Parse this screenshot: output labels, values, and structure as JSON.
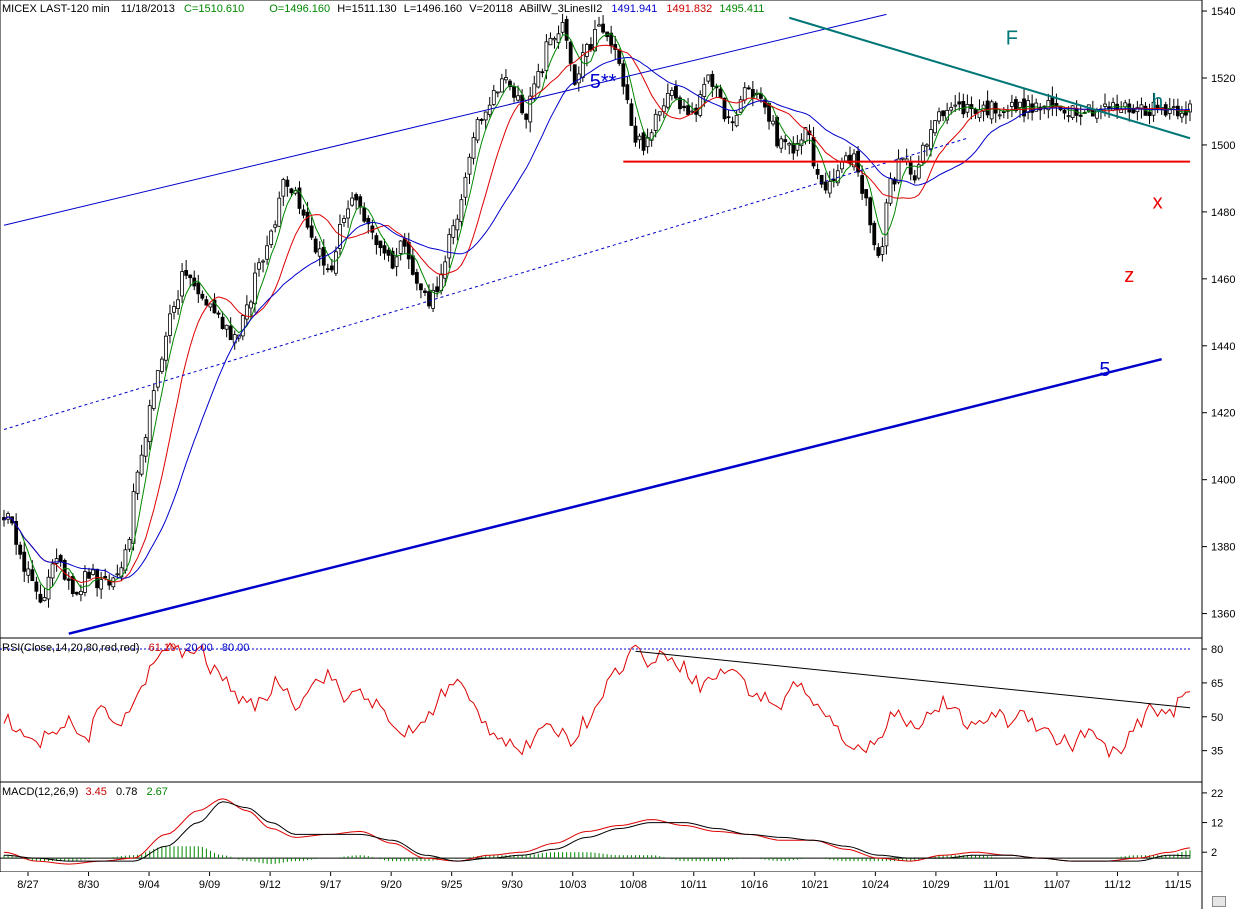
{
  "chart_data": {
    "type": "candlestick",
    "header": {
      "symbol_period": "MICEX LAST-120 min",
      "date": "11/18/2013",
      "close": "C=1510.610",
      "open": "O=1496.160",
      "high": "H=1511.130",
      "low": "L=1496.160",
      "volume": "V=20118",
      "indicator_name": "ABillW_3LinesII2",
      "line_values": [
        {
          "value": "1491.941",
          "color": "#0000cc"
        },
        {
          "value": "1491.832",
          "color": "#cc0000"
        },
        {
          "value": "1495.411",
          "color": "#008800"
        }
      ]
    },
    "price_axis": {
      "ticks": [
        1360,
        1380,
        1400,
        1420,
        1440,
        1460,
        1480,
        1500,
        1520,
        1540
      ],
      "ylim": [
        1353,
        1543
      ]
    },
    "date_axis": {
      "ticks": [
        "8/27",
        "8/30",
        "9/04",
        "9/09",
        "9/12",
        "9/17",
        "9/20",
        "9/25",
        "9/30",
        "10/03",
        "10/08",
        "10/11",
        "10/16",
        "10/21",
        "10/24",
        "10/29",
        "11/01",
        "11/07",
        "11/12",
        "11/15"
      ]
    },
    "price_anchors": [
      [
        0,
        1390
      ],
      [
        3,
        1383
      ],
      [
        6,
        1372
      ],
      [
        9,
        1362
      ],
      [
        12,
        1376
      ],
      [
        15,
        1372
      ],
      [
        18,
        1367
      ],
      [
        21,
        1372
      ],
      [
        24,
        1368
      ],
      [
        27,
        1370
      ],
      [
        30,
        1377
      ],
      [
        33,
        1400
      ],
      [
        36,
        1420
      ],
      [
        39,
        1438
      ],
      [
        42,
        1453
      ],
      [
        45,
        1462
      ],
      [
        48,
        1455
      ],
      [
        51,
        1452
      ],
      [
        54,
        1447
      ],
      [
        57,
        1443
      ],
      [
        60,
        1450
      ],
      [
        63,
        1465
      ],
      [
        66,
        1474
      ],
      [
        69,
        1490
      ],
      [
        72,
        1486
      ],
      [
        75,
        1475
      ],
      [
        78,
        1467
      ],
      [
        81,
        1462
      ],
      [
        84,
        1478
      ],
      [
        87,
        1485
      ],
      [
        90,
        1475
      ],
      [
        93,
        1470
      ],
      [
        96,
        1465
      ],
      [
        99,
        1472
      ],
      [
        102,
        1458
      ],
      [
        105,
        1454
      ],
      [
        108,
        1460
      ],
      [
        111,
        1475
      ],
      [
        114,
        1489
      ],
      [
        117,
        1508
      ],
      [
        120,
        1513
      ],
      [
        123,
        1520
      ],
      [
        126,
        1515
      ],
      [
        129,
        1510
      ],
      [
        132,
        1520
      ],
      [
        135,
        1532
      ],
      [
        138,
        1535
      ],
      [
        141,
        1518
      ],
      [
        144,
        1528
      ],
      [
        147,
        1535
      ],
      [
        150,
        1530
      ],
      [
        153,
        1520
      ],
      [
        156,
        1502
      ],
      [
        159,
        1500
      ],
      [
        162,
        1512
      ],
      [
        165,
        1518
      ],
      [
        168,
        1510
      ],
      [
        171,
        1510
      ],
      [
        174,
        1522
      ],
      [
        177,
        1512
      ],
      [
        180,
        1505
      ],
      [
        183,
        1517
      ],
      [
        186,
        1515
      ],
      [
        189,
        1508
      ],
      [
        192,
        1500
      ],
      [
        195,
        1498
      ],
      [
        198,
        1505
      ],
      [
        201,
        1490
      ],
      [
        204,
        1487
      ],
      [
        207,
        1494
      ],
      [
        210,
        1497
      ],
      [
        213,
        1483
      ],
      [
        216,
        1465
      ],
      [
        219,
        1489
      ],
      [
        222,
        1495
      ],
      [
        225,
        1492
      ],
      [
        228,
        1500
      ],
      [
        231,
        1511
      ]
    ],
    "ma_lines": [
      {
        "color": "#008800",
        "period": 5
      },
      {
        "color": "#dd0000",
        "period": 13
      },
      {
        "color": "#0000cc",
        "period": 26
      }
    ],
    "trend_lines": [
      {
        "name": "upper-channel-line",
        "color": "#0000cc",
        "style": "solid",
        "width": 1,
        "from": [
          0,
          1476
        ],
        "to": [
          218,
          1539
        ]
      },
      {
        "name": "mid-channel-dotted-line",
        "color": "#0000cc",
        "style": "dotted",
        "width": 1,
        "from": [
          0,
          1415
        ],
        "to": [
          238,
          1502
        ]
      },
      {
        "name": "lower-channel-line",
        "color": "#0000cc",
        "style": "solid",
        "width": 2.5,
        "from": [
          16,
          1354
        ],
        "to": [
          286,
          1436
        ]
      },
      {
        "name": "resistance-line",
        "color": "#007777",
        "style": "solid",
        "width": 2,
        "from": [
          194,
          1538
        ],
        "to": [
          293,
          1502
        ]
      },
      {
        "name": "support-line",
        "color": "#ee0000",
        "style": "solid",
        "width": 2,
        "from": [
          153,
          1495
        ],
        "to": [
          293,
          1495
        ]
      }
    ],
    "annotations": [
      {
        "text": "5**",
        "color": "#0000cc",
        "bar": 148,
        "price": 1517
      },
      {
        "text": "F",
        "color": "#007777",
        "bar": 249,
        "price": 1530
      },
      {
        "text": "h",
        "color": "#007777",
        "bar": 285,
        "price": 1511
      },
      {
        "text": "x",
        "color": "#ee0000",
        "bar": 285,
        "price": 1481
      },
      {
        "text": "z",
        "color": "#ee0000",
        "bar": 278,
        "price": 1459
      },
      {
        "text": "5",
        "color": "#0000cc",
        "bar": 272,
        "price": 1431
      }
    ],
    "rsi": {
      "title": "RSI(Close,14,20,80,red,red)",
      "values": [
        {
          "value": "61.10",
          "color": "#cc0000"
        },
        {
          "value": "20.00",
          "color": "#0000cc"
        },
        {
          "value": "80.00",
          "color": "#0000cc"
        }
      ],
      "ticks": [
        35,
        50,
        65,
        80
      ],
      "ylim": [
        22,
        84
      ],
      "levels": [
        20,
        80
      ],
      "trend_line": {
        "from": [
          156,
          79
        ],
        "to": [
          293,
          54
        ]
      },
      "anchors": [
        [
          0,
          50
        ],
        [
          4,
          42
        ],
        [
          8,
          37
        ],
        [
          12,
          45
        ],
        [
          16,
          47
        ],
        [
          20,
          40
        ],
        [
          24,
          52
        ],
        [
          28,
          48
        ],
        [
          32,
          55
        ],
        [
          36,
          70
        ],
        [
          40,
          81
        ],
        [
          44,
          78
        ],
        [
          48,
          80
        ],
        [
          52,
          70
        ],
        [
          56,
          64
        ],
        [
          60,
          54
        ],
        [
          64,
          58
        ],
        [
          68,
          66
        ],
        [
          72,
          56
        ],
        [
          76,
          64
        ],
        [
          80,
          69
        ],
        [
          84,
          58
        ],
        [
          88,
          62
        ],
        [
          92,
          55
        ],
        [
          96,
          45
        ],
        [
          100,
          43
        ],
        [
          104,
          48
        ],
        [
          108,
          60
        ],
        [
          112,
          65
        ],
        [
          116,
          55
        ],
        [
          120,
          45
        ],
        [
          124,
          40
        ],
        [
          128,
          35
        ],
        [
          132,
          42
        ],
        [
          136,
          45
        ],
        [
          140,
          40
        ],
        [
          144,
          48
        ],
        [
          148,
          62
        ],
        [
          152,
          72
        ],
        [
          156,
          80
        ],
        [
          160,
          74
        ],
        [
          164,
          78
        ],
        [
          168,
          72
        ],
        [
          172,
          64
        ],
        [
          176,
          68
        ],
        [
          180,
          72
        ],
        [
          184,
          62
        ],
        [
          188,
          58
        ],
        [
          192,
          55
        ],
        [
          196,
          66
        ],
        [
          200,
          55
        ],
        [
          204,
          48
        ],
        [
          208,
          40
        ],
        [
          212,
          34
        ],
        [
          216,
          42
        ],
        [
          220,
          52
        ],
        [
          224,
          46
        ],
        [
          228,
          50
        ],
        [
          232,
          56
        ],
        [
          236,
          50
        ],
        [
          240,
          44
        ],
        [
          244,
          52
        ],
        [
          248,
          48
        ],
        [
          252,
          52
        ],
        [
          256,
          46
        ],
        [
          260,
          40
        ],
        [
          264,
          38
        ],
        [
          268,
          44
        ],
        [
          272,
          36
        ],
        [
          276,
          34
        ],
        [
          280,
          46
        ],
        [
          284,
          54
        ],
        [
          288,
          52
        ],
        [
          293,
          61
        ]
      ]
    },
    "macd": {
      "title": "MACD(12,26,9)",
      "values": [
        {
          "value": "3.45",
          "color": "#cc0000"
        },
        {
          "value": "0.78",
          "color": "#000000"
        },
        {
          "value": "2.67",
          "color": "#008800"
        }
      ],
      "ticks": [
        2,
        12,
        22
      ],
      "ylim": [
        -4,
        25
      ],
      "macd_anchors": [
        [
          0,
          2
        ],
        [
          8,
          -1
        ],
        [
          16,
          -2
        ],
        [
          24,
          -1
        ],
        [
          32,
          0
        ],
        [
          40,
          8
        ],
        [
          48,
          16
        ],
        [
          54,
          20
        ],
        [
          60,
          16
        ],
        [
          66,
          10
        ],
        [
          72,
          7
        ],
        [
          80,
          8
        ],
        [
          88,
          9
        ],
        [
          96,
          5
        ],
        [
          104,
          0
        ],
        [
          112,
          -1
        ],
        [
          120,
          1
        ],
        [
          128,
          2
        ],
        [
          136,
          5
        ],
        [
          144,
          9
        ],
        [
          152,
          11
        ],
        [
          160,
          13
        ],
        [
          168,
          11
        ],
        [
          176,
          9
        ],
        [
          184,
          8
        ],
        [
          192,
          6
        ],
        [
          200,
          6
        ],
        [
          208,
          3
        ],
        [
          216,
          0
        ],
        [
          224,
          -1
        ],
        [
          232,
          1
        ],
        [
          240,
          2
        ],
        [
          248,
          1
        ],
        [
          256,
          0
        ],
        [
          264,
          -1
        ],
        [
          272,
          -1
        ],
        [
          280,
          0
        ],
        [
          288,
          2
        ],
        [
          293,
          3.45
        ]
      ],
      "signal_anchors": [
        [
          0,
          1
        ],
        [
          8,
          0
        ],
        [
          16,
          -1
        ],
        [
          24,
          -1
        ],
        [
          32,
          -1
        ],
        [
          40,
          4
        ],
        [
          48,
          12
        ],
        [
          54,
          19
        ],
        [
          60,
          17
        ],
        [
          66,
          12
        ],
        [
          72,
          8
        ],
        [
          80,
          8
        ],
        [
          88,
          8
        ],
        [
          96,
          6
        ],
        [
          104,
          1
        ],
        [
          112,
          -1
        ],
        [
          120,
          0
        ],
        [
          128,
          1
        ],
        [
          136,
          3
        ],
        [
          144,
          7
        ],
        [
          152,
          10
        ],
        [
          160,
          12
        ],
        [
          168,
          12
        ],
        [
          176,
          10
        ],
        [
          184,
          8
        ],
        [
          192,
          7
        ],
        [
          200,
          6
        ],
        [
          208,
          4
        ],
        [
          216,
          1
        ],
        [
          224,
          0
        ],
        [
          232,
          0
        ],
        [
          240,
          1
        ],
        [
          248,
          1
        ],
        [
          256,
          0
        ],
        [
          264,
          -1
        ],
        [
          272,
          -1
        ],
        [
          280,
          -1
        ],
        [
          288,
          1
        ],
        [
          293,
          0.78
        ]
      ]
    }
  }
}
